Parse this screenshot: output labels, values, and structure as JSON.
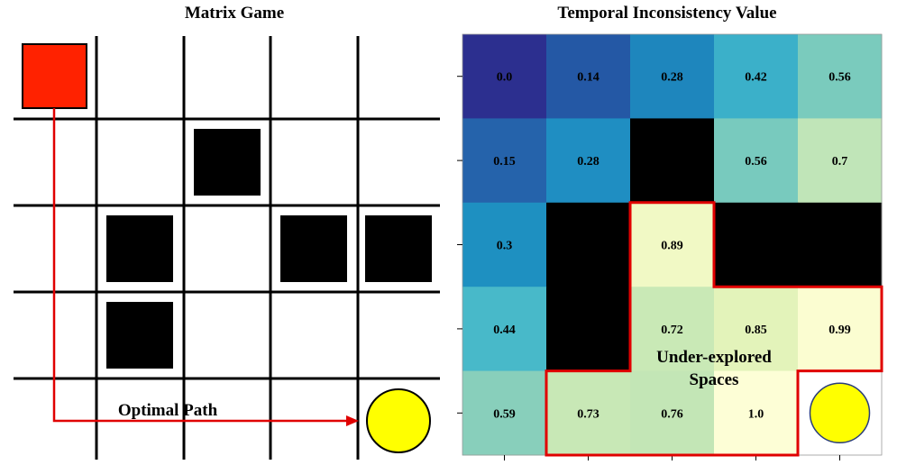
{
  "left_panel": {
    "title": "Matrix Game",
    "path_label": "Optimal Path",
    "colors": {
      "agent": "#ff2200",
      "goal": "#ffff00",
      "obstacle": "#000000",
      "path": "#e00000"
    },
    "obstacles": [
      [
        1,
        2
      ],
      [
        2,
        1
      ],
      [
        2,
        3
      ],
      [
        2,
        4
      ],
      [
        3,
        1
      ]
    ],
    "start": [
      0,
      0
    ],
    "goal": [
      4,
      4
    ],
    "path_waypoints": [
      [
        0,
        0
      ],
      [
        4,
        0
      ],
      [
        4,
        4
      ]
    ]
  },
  "right_panel": {
    "title": "Temporal Inconsistency Value",
    "annotation_lines": [
      "Under-explored",
      "Spaces"
    ],
    "colors": {
      "highlight": "#e00000",
      "goal": "#ffff00",
      "obstacle": "#000000"
    },
    "values": [
      [
        "0.0",
        "0.14",
        "0.28",
        "0.42",
        "0.56"
      ],
      [
        "0.15",
        "0.28",
        null,
        "0.56",
        "0.7"
      ],
      [
        "0.3",
        null,
        "0.89",
        null,
        null
      ],
      [
        "0.44",
        null,
        "0.72",
        "0.85",
        "0.99"
      ],
      [
        "0.59",
        "0.73",
        "0.76",
        "1.0",
        "goal"
      ]
    ],
    "cell_colors": [
      [
        "#2c2f8f",
        "#2458a5",
        "#1e86bd",
        "#3bb0c9",
        "#7acbbd"
      ],
      [
        "#2563ab",
        "#1f8ec2",
        "#000000",
        "#78cabe",
        "#c0e5b8"
      ],
      [
        "#1e90c1",
        "#000000",
        "#f1f9c5",
        "#000000",
        "#000000"
      ],
      [
        "#48b9c9",
        "#000000",
        "#c9e9b6",
        "#e3f3ba",
        "#fbfdd1"
      ],
      [
        "#88cfbb",
        "#c8e8b6",
        "#c3e6b6",
        "#fdfed6",
        "#ffffff"
      ]
    ],
    "highlight_cells": [
      [
        2,
        2
      ],
      [
        3,
        2
      ],
      [
        3,
        3
      ],
      [
        3,
        4
      ],
      [
        4,
        1
      ],
      [
        4,
        2
      ],
      [
        4,
        3
      ]
    ]
  }
}
